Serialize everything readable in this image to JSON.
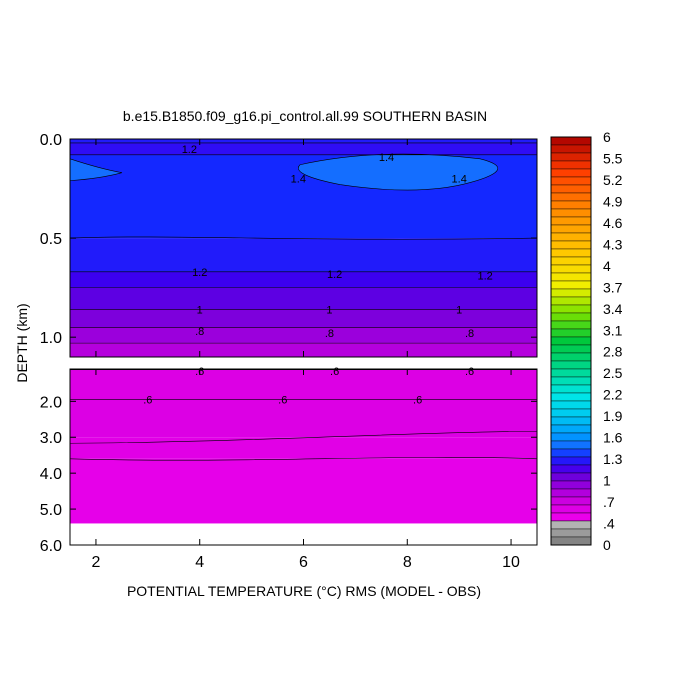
{
  "chart_data": {
    "type": "heatmap",
    "title": "b.e15.B1850.f09_g16.pi_control.all.99 SOUTHERN BASIN",
    "xlabel": "POTENTIAL TEMPERATURE (°C) RMS (MODEL - OBS)",
    "ylabel": "DEPTH (km)",
    "xlim": [
      1.5,
      10.5
    ],
    "x_ticks": [
      "2",
      "4",
      "6",
      "8",
      "10"
    ],
    "x_tick_values": [
      2,
      4,
      6,
      8,
      10
    ],
    "upper_panel": {
      "ylim": [
        0.0,
        1.1
      ],
      "y_ticks": [
        "0.0",
        "0.5",
        "1.0"
      ],
      "y_tick_values": [
        0.0,
        0.5,
        1.0
      ],
      "bands": [
        {
          "depth_range": [
            0.0,
            0.02
          ],
          "value": 1.25
        },
        {
          "depth_range": [
            0.02,
            0.08
          ],
          "value": 1.2
        },
        {
          "depth_range": [
            0.08,
            0.5
          ],
          "value": 1.3
        },
        {
          "depth_range": [
            0.5,
            0.67
          ],
          "value": 1.25
        },
        {
          "depth_range": [
            0.67,
            0.75
          ],
          "value": 1.15
        },
        {
          "depth_range": [
            0.75,
            0.86
          ],
          "value": 1.05
        },
        {
          "depth_range": [
            0.86,
            0.95
          ],
          "value": 0.95
        },
        {
          "depth_range": [
            0.95,
            1.03
          ],
          "value": 0.85
        },
        {
          "depth_range": [
            1.03,
            1.1
          ],
          "value": 0.75
        }
      ],
      "contour_labels": [
        {
          "text": "1.2",
          "x": 3.8,
          "depth": 0.05
        },
        {
          "text": "1.4",
          "x": 7.6,
          "depth": 0.09
        },
        {
          "text": "1.4",
          "x": 5.9,
          "depth": 0.2
        },
        {
          "text": "1.4",
          "x": 9.0,
          "depth": 0.2
        },
        {
          "text": "1.2",
          "x": 4.0,
          "depth": 0.67
        },
        {
          "text": "1.2",
          "x": 6.6,
          "depth": 0.68
        },
        {
          "text": "1.2",
          "x": 9.5,
          "depth": 0.69
        },
        {
          "text": "1",
          "x": 4.0,
          "depth": 0.86
        },
        {
          "text": "1",
          "x": 6.5,
          "depth": 0.86
        },
        {
          "text": "1",
          "x": 9.0,
          "depth": 0.86
        },
        {
          "text": ".8",
          "x": 4.0,
          "depth": 0.97
        },
        {
          "text": ".8",
          "x": 6.5,
          "depth": 0.98
        },
        {
          "text": ".8",
          "x": 9.2,
          "depth": 0.98
        }
      ]
    },
    "lower_panel": {
      "ylim": [
        1.1,
        6.0
      ],
      "y_ticks": [
        "2.0",
        "3.0",
        "4.0",
        "5.0",
        "6.0"
      ],
      "y_tick_values": [
        2.0,
        3.0,
        4.0,
        5.0,
        6.0
      ],
      "data_bottom_depth": 5.4,
      "bands": [
        {
          "depth_range": [
            1.1,
            3.0
          ],
          "value": 0.55
        },
        {
          "depth_range": [
            3.0,
            3.6
          ],
          "value": 0.5
        },
        {
          "depth_range": [
            3.6,
            5.4
          ],
          "value": 0.45
        }
      ],
      "contour_labels": [
        {
          "text": ".6",
          "x": 4.0,
          "depth": 1.15
        },
        {
          "text": ".6",
          "x": 6.6,
          "depth": 1.15
        },
        {
          "text": ".6",
          "x": 9.2,
          "depth": 1.15
        },
        {
          "text": ".6",
          "x": 3.0,
          "depth": 1.95
        },
        {
          "text": ".6",
          "x": 5.6,
          "depth": 1.95
        },
        {
          "text": ".6",
          "x": 8.2,
          "depth": 1.95
        }
      ]
    },
    "colorbar": {
      "labels": [
        "6",
        "5.5",
        "5.2",
        "4.9",
        "4.6",
        "4.3",
        "4",
        "3.7",
        "3.4",
        "3.1",
        "2.8",
        "2.5",
        "2.2",
        "1.9",
        "1.6",
        "1.3",
        "1",
        ".7",
        ".4",
        "0"
      ]
    }
  }
}
